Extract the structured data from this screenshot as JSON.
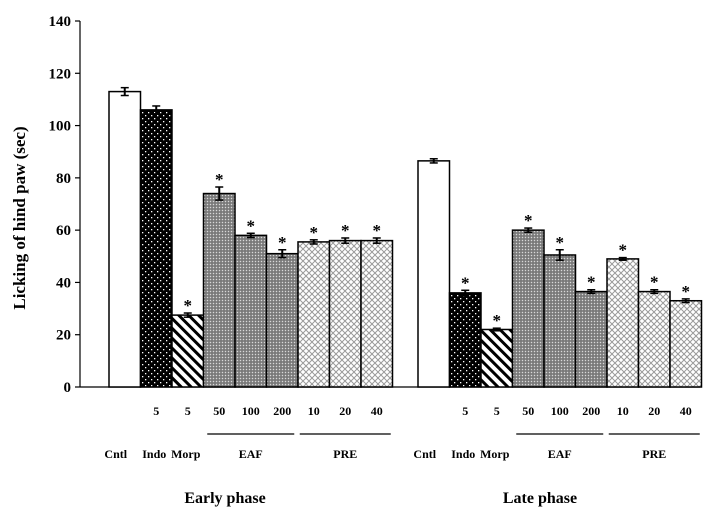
{
  "chart_data": {
    "type": "bar",
    "ylabel": "Licking of hind paw (sec)",
    "ylim": [
      0,
      140
    ],
    "yticks": [
      0,
      20,
      40,
      60,
      80,
      100,
      120,
      140
    ],
    "significance_marker": "*",
    "groups": [
      {
        "phase": "Early phase",
        "bars": [
          {
            "treatment": "Cntl",
            "dose": "",
            "value": 113,
            "error": 1.5,
            "sig": false,
            "pattern": "white"
          },
          {
            "treatment": "Indo",
            "dose": "5",
            "value": 106,
            "error": 1.5,
            "sig": false,
            "pattern": "dots"
          },
          {
            "treatment": "Morp",
            "dose": "5",
            "value": 27.5,
            "error": 0.8,
            "sig": true,
            "pattern": "stripes"
          },
          {
            "treatment": "EAF",
            "dose": "50",
            "value": 74,
            "error": 2.5,
            "sig": true,
            "pattern": "gray"
          },
          {
            "treatment": "EAF",
            "dose": "100",
            "value": 58,
            "error": 0.8,
            "sig": true,
            "pattern": "gray"
          },
          {
            "treatment": "EAF",
            "dose": "200",
            "value": 51,
            "error": 1.5,
            "sig": true,
            "pattern": "gray"
          },
          {
            "treatment": "PRE",
            "dose": "10",
            "value": 55.5,
            "error": 0.8,
            "sig": true,
            "pattern": "check"
          },
          {
            "treatment": "PRE",
            "dose": "20",
            "value": 56,
            "error": 1.0,
            "sig": true,
            "pattern": "check"
          },
          {
            "treatment": "PRE",
            "dose": "40",
            "value": 56,
            "error": 1.0,
            "sig": true,
            "pattern": "check"
          }
        ],
        "axis_labels": {
          "cntl": "Cntl",
          "indo": "Indo",
          "morp": "Morp",
          "eaf": "EAF",
          "pre": "PRE"
        }
      },
      {
        "phase": "Late phase",
        "bars": [
          {
            "treatment": "Cntl",
            "dose": "",
            "value": 86.5,
            "error": 0.8,
            "sig": false,
            "pattern": "white"
          },
          {
            "treatment": "Indo",
            "dose": "5",
            "value": 36,
            "error": 1.0,
            "sig": true,
            "pattern": "dots"
          },
          {
            "treatment": "Morp",
            "dose": "5",
            "value": 22,
            "error": 0.5,
            "sig": true,
            "pattern": "stripes"
          },
          {
            "treatment": "EAF",
            "dose": "50",
            "value": 60,
            "error": 0.8,
            "sig": true,
            "pattern": "gray"
          },
          {
            "treatment": "EAF",
            "dose": "100",
            "value": 50.5,
            "error": 2.0,
            "sig": true,
            "pattern": "gray"
          },
          {
            "treatment": "EAF",
            "dose": "200",
            "value": 36.5,
            "error": 0.7,
            "sig": true,
            "pattern": "gray"
          },
          {
            "treatment": "PRE",
            "dose": "10",
            "value": 49,
            "error": 0.5,
            "sig": true,
            "pattern": "check"
          },
          {
            "treatment": "PRE",
            "dose": "20",
            "value": 36.5,
            "error": 0.7,
            "sig": true,
            "pattern": "check"
          },
          {
            "treatment": "PRE",
            "dose": "40",
            "value": 33,
            "error": 0.7,
            "sig": true,
            "pattern": "check"
          }
        ],
        "axis_labels": {
          "cntl": "Cntl",
          "indo": "Indo",
          "morp": "Morp",
          "eaf": "EAF",
          "pre": "PRE"
        }
      }
    ]
  }
}
